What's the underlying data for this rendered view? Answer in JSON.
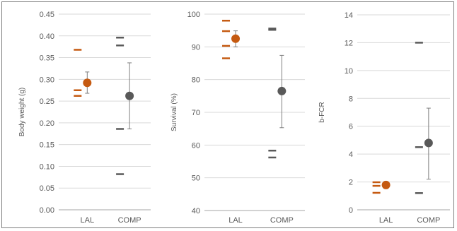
{
  "chart_data": [
    {
      "type": "scatter",
      "ylabel": "Body weight (g)",
      "ylim": [
        0,
        0.45
      ],
      "ytick_step": 0.05,
      "ytick_decimals": 2,
      "categories": [
        "LAL",
        "COMP"
      ],
      "grid": true,
      "series": [
        {
          "category": "LAL",
          "color": "#c55a11",
          "replicates": [
            0.368,
            0.275,
            0.262
          ],
          "mean": 0.292,
          "error": [
            0.268,
            0.317
          ]
        },
        {
          "category": "COMP",
          "color": "#595959",
          "replicates": [
            0.396,
            0.378,
            0.186,
            0.082
          ],
          "mean": 0.262,
          "error": [
            0.186,
            0.338
          ]
        }
      ]
    },
    {
      "type": "scatter",
      "ylabel": "Survival (%)",
      "ylim": [
        40,
        100
      ],
      "ytick_step": 10,
      "ytick_decimals": 0,
      "categories": [
        "LAL",
        "COMP"
      ],
      "grid": true,
      "series": [
        {
          "category": "LAL",
          "color": "#c55a11",
          "replicates": [
            98.0,
            94.8,
            90.3,
            86.5
          ],
          "mean": 92.5,
          "error": [
            90.0,
            94.9
          ]
        },
        {
          "category": "COMP",
          "color": "#595959",
          "replicates": [
            95.6,
            95.2,
            58.3,
            56.2
          ],
          "mean": 76.5,
          "error": [
            65.3,
            87.4
          ]
        }
      ]
    },
    {
      "type": "scatter",
      "ylabel": "b-FCR",
      "ylim": [
        0,
        14
      ],
      "ytick_step": 2,
      "ytick_decimals": 0,
      "categories": [
        "LAL",
        "COMP"
      ],
      "grid": true,
      "series": [
        {
          "category": "LAL",
          "color": "#c55a11",
          "replicates": [
            1.98,
            1.72,
            1.22
          ],
          "mean": 1.78,
          "error": [
            1.52,
            2.04
          ]
        },
        {
          "category": "COMP",
          "color": "#595959",
          "replicates": [
            12.0,
            4.5,
            1.2
          ],
          "mean": 4.8,
          "error": [
            2.2,
            7.3
          ]
        }
      ]
    }
  ]
}
